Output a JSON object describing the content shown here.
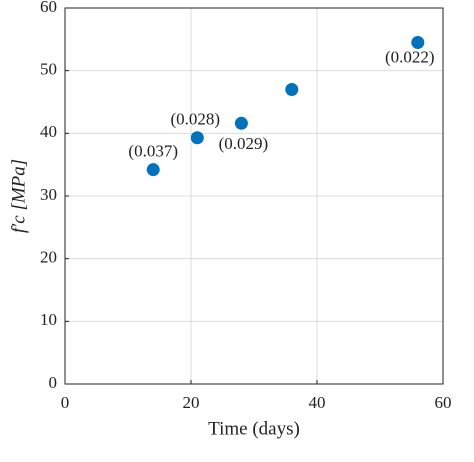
{
  "chart_data": {
    "type": "scatter",
    "x_label": "Time (days)",
    "y_label": "f′c [MPa]",
    "x": [
      14,
      21,
      28,
      36,
      56
    ],
    "values": [
      34.2,
      39.3,
      41.6,
      47,
      54.5
    ],
    "point_labels": [
      "(0.037)",
      "(0.028)",
      "(0.029)",
      null,
      "(0.022)"
    ],
    "color": "#0072bd",
    "xlim": [
      0,
      60
    ],
    "xticks": [
      0,
      20,
      40,
      60
    ],
    "ylim": [
      0,
      60
    ],
    "yticks": [
      0,
      10,
      20,
      30,
      40,
      50,
      60
    ],
    "grid": true
  }
}
